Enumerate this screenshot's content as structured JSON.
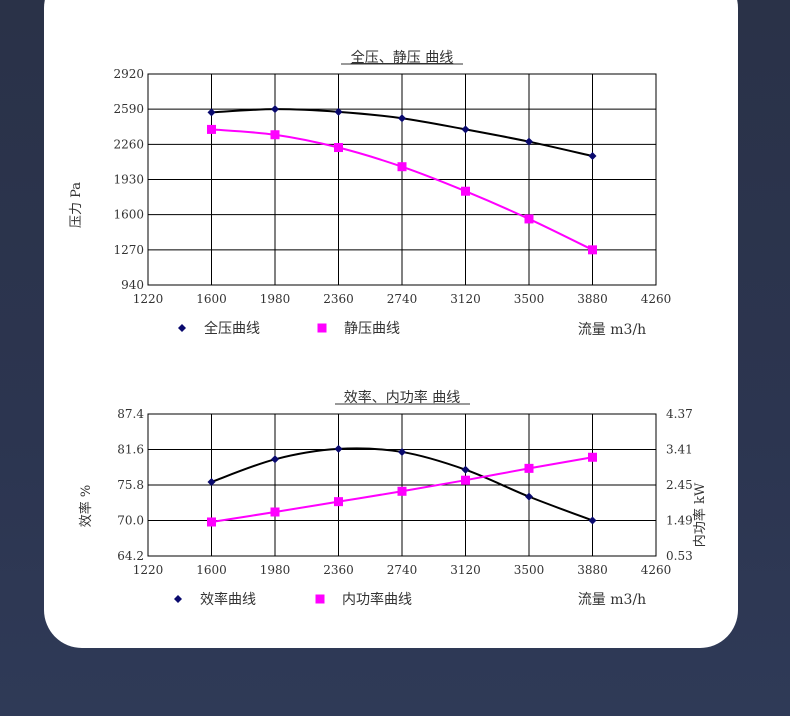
{
  "chart_data": [
    {
      "type": "line",
      "title": "全压、静压 曲线",
      "ylabel": "压力 Pa",
      "xlabel": "流量 m3/h",
      "x_ticks": [
        "1220",
        "1600",
        "1980",
        "2360",
        "2740",
        "3120",
        "3500",
        "3880",
        "4260"
      ],
      "y_ticks": [
        "940",
        "1270",
        "1600",
        "1930",
        "2260",
        "2590",
        "2920"
      ],
      "xlim": [
        1220,
        4260
      ],
      "ylim": [
        940,
        2920
      ],
      "grid": true,
      "legend_position": "bottom",
      "series": [
        {
          "name": "全压曲线",
          "marker": "diamond",
          "color": "#0a0a6e",
          "line_color": "#000000",
          "x": [
            1600,
            1980,
            2360,
            2740,
            3120,
            3500,
            3880
          ],
          "y": [
            2560,
            2590,
            2565,
            2505,
            2400,
            2285,
            2150
          ]
        },
        {
          "name": "静压曲线",
          "marker": "square",
          "color": "#ff00ff",
          "line_color": "#ff00ff",
          "x": [
            1600,
            1980,
            2360,
            2740,
            3120,
            3500,
            3880
          ],
          "y": [
            2400,
            2350,
            2230,
            2050,
            1820,
            1560,
            1270
          ]
        }
      ]
    },
    {
      "type": "line",
      "title": "效率、内功率 曲线",
      "ylabel": "效率 %",
      "y2label": "内功率 kW",
      "xlabel": "流量 m3/h",
      "x_ticks": [
        "1220",
        "1600",
        "1980",
        "2360",
        "2740",
        "3120",
        "3500",
        "3880",
        "4260"
      ],
      "y_ticks": [
        "64.2",
        "70.0",
        "75.8",
        "81.6",
        "87.4"
      ],
      "y2_ticks": [
        "0.53",
        "1.49",
        "2.45",
        "3.41",
        "4.37"
      ],
      "xlim": [
        1220,
        4260
      ],
      "ylim": [
        64.2,
        87.4
      ],
      "y2lim": [
        0.53,
        4.37
      ],
      "grid": true,
      "legend_position": "bottom",
      "series": [
        {
          "name": "效率曲线",
          "axis": "left",
          "marker": "diamond",
          "color": "#0a0a6e",
          "line_color": "#000000",
          "x": [
            1600,
            1980,
            2360,
            2740,
            3120,
            3500,
            3880
          ],
          "y": [
            76.3,
            80.0,
            81.7,
            81.2,
            78.3,
            73.9,
            70.0
          ]
        },
        {
          "name": "内功率曲线",
          "axis": "right",
          "marker": "square",
          "color": "#ff00ff",
          "line_color": "#ff00ff",
          "x": [
            1600,
            1980,
            2360,
            2740,
            3120,
            3500,
            3880
          ],
          "y": [
            1.45,
            1.72,
            2.0,
            2.28,
            2.58,
            2.9,
            3.2
          ]
        }
      ]
    }
  ]
}
